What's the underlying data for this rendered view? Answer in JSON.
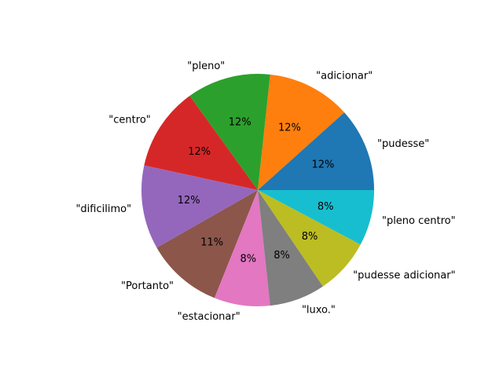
{
  "chart_data": {
    "type": "pie",
    "labels": [
      "\"pudesse\"",
      "\"adicionar\"",
      "\"pleno\"",
      "\"centro\"",
      "\"dificilimo\"",
      "\"Portanto\"",
      "\"estacionar\"",
      "\"luxo.\"",
      "\"pudesse adicionar\"",
      "\"pleno centro\""
    ],
    "values": [
      12,
      12,
      12,
      12,
      12,
      11,
      8,
      8,
      8,
      8
    ],
    "percent_labels": [
      "12%",
      "12%",
      "12%",
      "12%",
      "12%",
      "11%",
      "8%",
      "8%",
      "8%",
      "8%"
    ],
    "colors": [
      "#1f77b4",
      "#ff7f0e",
      "#2ca02c",
      "#d62728",
      "#9467bd",
      "#8c564b",
      "#e377c2",
      "#7f7f7f",
      "#bcbd22",
      "#17becf"
    ],
    "start_angle_deg": 0,
    "direction": "counterclockwise"
  }
}
